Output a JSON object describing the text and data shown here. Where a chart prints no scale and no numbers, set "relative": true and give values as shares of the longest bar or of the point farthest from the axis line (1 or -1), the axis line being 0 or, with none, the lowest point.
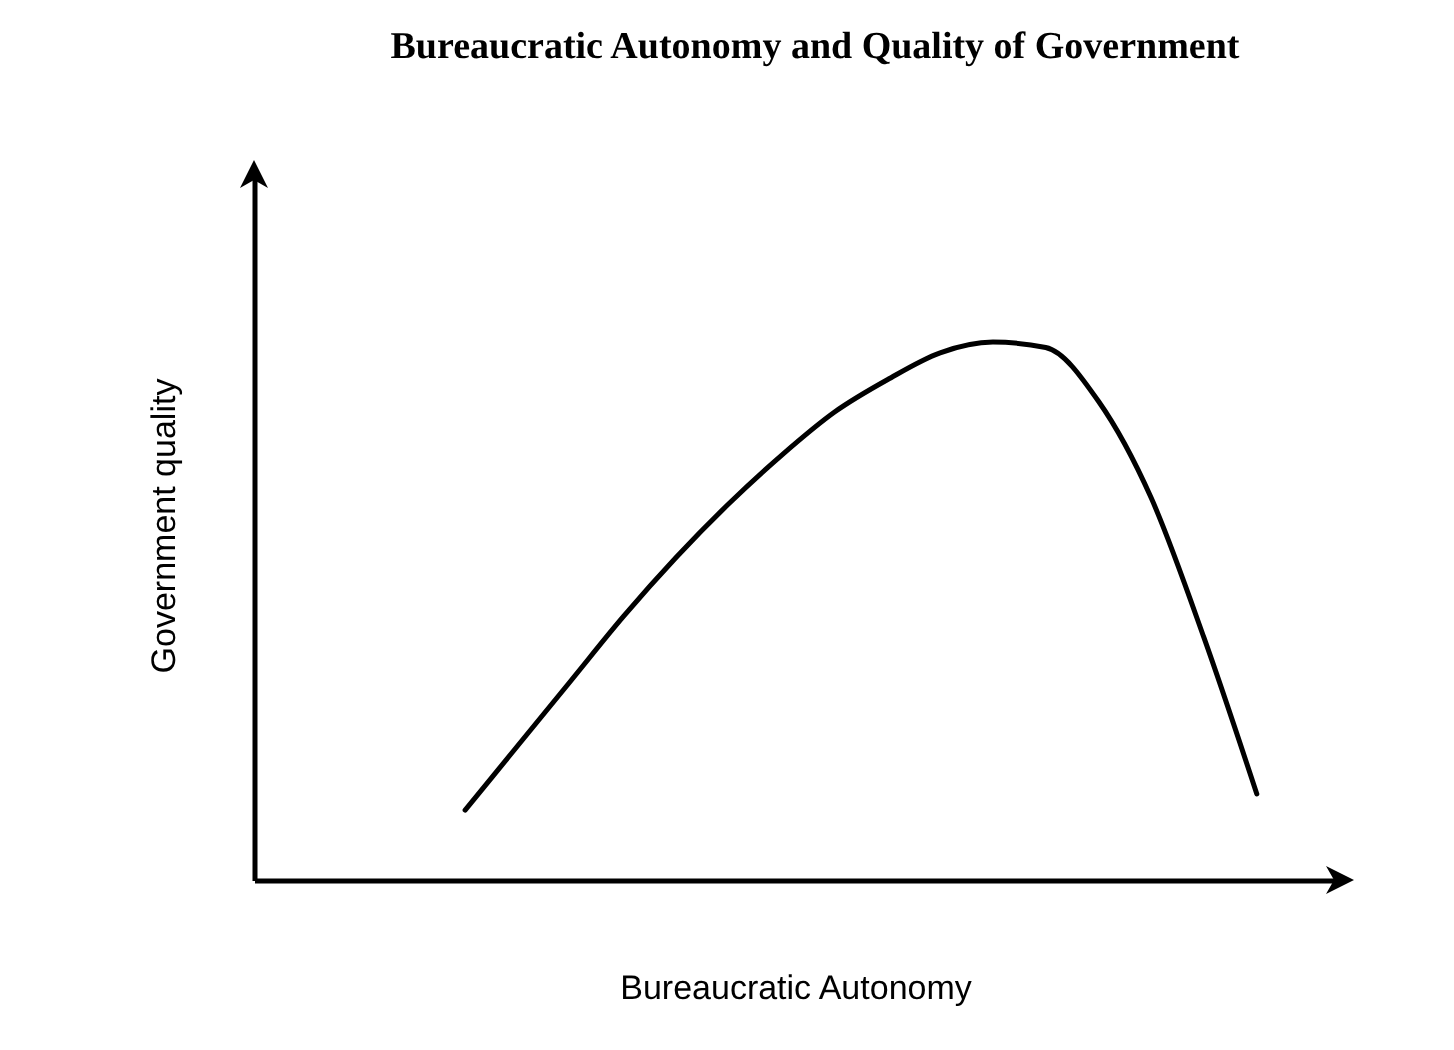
{
  "chart_data": {
    "type": "line",
    "title": "Bureaucratic Autonomy and Quality of Government",
    "xlabel": "Bureaucratic Autonomy",
    "ylabel": "Government quality",
    "categories": [
      null,
      null,
      null,
      null,
      null,
      null,
      null,
      null,
      null,
      null,
      null,
      null,
      null,
      null,
      null,
      null,
      null,
      null,
      null,
      null,
      null
    ],
    "values": [
      null,
      null,
      null,
      null,
      0.13,
      0.25,
      0.37,
      0.49,
      0.6,
      0.7,
      0.79,
      0.87,
      0.93,
      0.98,
      1,
      0.99,
      0.89,
      0.71,
      0.45,
      0.16,
      null
    ],
    "color": "#000000",
    "relative": true
  }
}
